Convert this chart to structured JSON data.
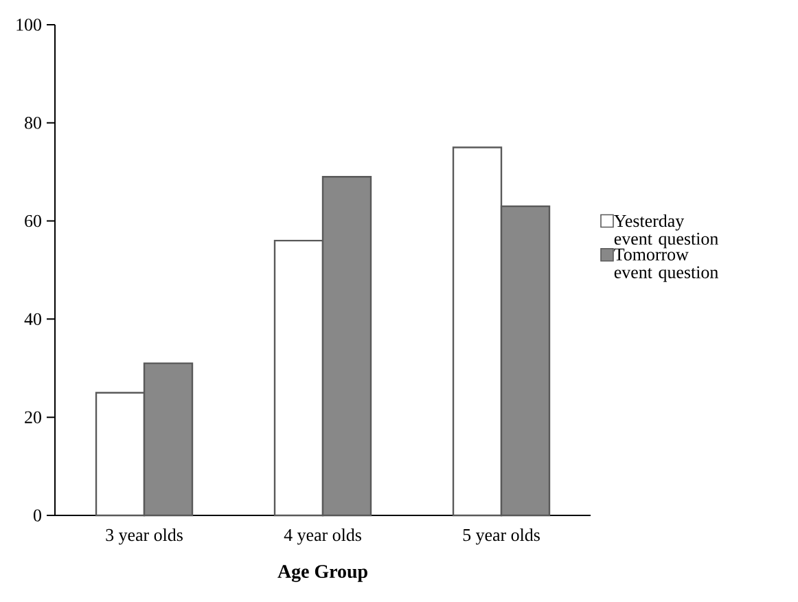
{
  "chart_data": {
    "type": "bar",
    "xlabel": "Age Group",
    "categories": [
      "3 year olds",
      "4 year olds",
      "5 year olds"
    ],
    "series": [
      {
        "name": "Yesterday event question",
        "color": "#ffffff",
        "values": [
          25,
          56,
          75
        ]
      },
      {
        "name": "Tomorrow event question",
        "color": "#888888",
        "values": [
          31,
          69,
          63
        ]
      }
    ],
    "ylim": [
      0,
      100
    ],
    "yticks": [
      0,
      20,
      40,
      60,
      80,
      100
    ],
    "grid": false,
    "legend": "right"
  }
}
